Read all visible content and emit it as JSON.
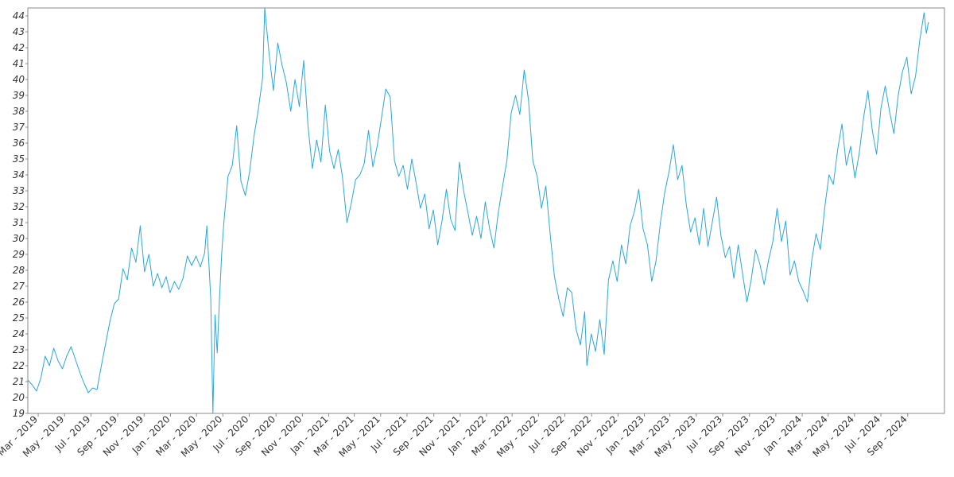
{
  "chart_data": {
    "type": "line",
    "title": "",
    "xlabel": "",
    "ylabel": "",
    "x_range": [
      "2019-02-05",
      "2024-11-25"
    ],
    "ylim": [
      19,
      44.5
    ],
    "y_ticks": [
      19,
      20,
      21,
      22,
      23,
      24,
      25,
      26,
      27,
      28,
      29,
      30,
      31,
      32,
      33,
      34,
      35,
      36,
      37,
      38,
      39,
      40,
      41,
      42,
      43,
      44
    ],
    "x_ticks": [
      {
        "date": "2019-03-01",
        "label": "Mar - 2019"
      },
      {
        "date": "2019-05-01",
        "label": "May - 2019"
      },
      {
        "date": "2019-07-01",
        "label": "Jul - 2019"
      },
      {
        "date": "2019-09-01",
        "label": "Sep - 2019"
      },
      {
        "date": "2019-11-01",
        "label": "Nov - 2019"
      },
      {
        "date": "2020-01-01",
        "label": "Jan - 2020"
      },
      {
        "date": "2020-03-01",
        "label": "Mar - 2020"
      },
      {
        "date": "2020-05-01",
        "label": "May - 2020"
      },
      {
        "date": "2020-07-01",
        "label": "Jul - 2020"
      },
      {
        "date": "2020-09-01",
        "label": "Sep - 2020"
      },
      {
        "date": "2020-11-01",
        "label": "Nov - 2020"
      },
      {
        "date": "2021-01-01",
        "label": "Jan - 2021"
      },
      {
        "date": "2021-03-01",
        "label": "Mar - 2021"
      },
      {
        "date": "2021-05-01",
        "label": "May - 2021"
      },
      {
        "date": "2021-07-01",
        "label": "Jul - 2021"
      },
      {
        "date": "2021-09-01",
        "label": "Sep - 2021"
      },
      {
        "date": "2021-11-01",
        "label": "Nov - 2021"
      },
      {
        "date": "2022-01-01",
        "label": "Jan - 2022"
      },
      {
        "date": "2022-03-01",
        "label": "Mar - 2022"
      },
      {
        "date": "2022-05-01",
        "label": "May - 2022"
      },
      {
        "date": "2022-07-01",
        "label": "Jul - 2022"
      },
      {
        "date": "2022-09-01",
        "label": "Sep - 2022"
      },
      {
        "date": "2022-11-01",
        "label": "Nov - 2022"
      },
      {
        "date": "2023-01-01",
        "label": "Jan - 2023"
      },
      {
        "date": "2023-03-01",
        "label": "Mar - 2023"
      },
      {
        "date": "2023-05-01",
        "label": "May - 2023"
      },
      {
        "date": "2023-07-01",
        "label": "Jul - 2023"
      },
      {
        "date": "2023-09-01",
        "label": "Sep - 2023"
      },
      {
        "date": "2023-11-01",
        "label": "Nov - 2023"
      },
      {
        "date": "2024-01-01",
        "label": "Jan - 2024"
      },
      {
        "date": "2024-03-01",
        "label": "Mar - 2024"
      },
      {
        "date": "2024-05-01",
        "label": "May - 2024"
      },
      {
        "date": "2024-07-01",
        "label": "Jul - 2024"
      },
      {
        "date": "2024-09-01",
        "label": "Sep - 2024"
      }
    ],
    "grid": false,
    "legend": "none",
    "series": [
      {
        "color": "#29a8dd",
        "points": [
          [
            "2019-02-05",
            21.1
          ],
          [
            "2019-02-15",
            20.8
          ],
          [
            "2019-02-25",
            20.4
          ],
          [
            "2019-03-07",
            21.2
          ],
          [
            "2019-03-17",
            22.6
          ],
          [
            "2019-03-27",
            22.0
          ],
          [
            "2019-04-06",
            23.1
          ],
          [
            "2019-04-16",
            22.3
          ],
          [
            "2019-04-26",
            21.8
          ],
          [
            "2019-05-06",
            22.6
          ],
          [
            "2019-05-16",
            23.2
          ],
          [
            "2019-05-26",
            22.4
          ],
          [
            "2019-06-05",
            21.6
          ],
          [
            "2019-06-15",
            20.9
          ],
          [
            "2019-06-25",
            20.3
          ],
          [
            "2019-07-05",
            20.6
          ],
          [
            "2019-07-15",
            20.5
          ],
          [
            "2019-07-25",
            22.0
          ],
          [
            "2019-08-04",
            23.4
          ],
          [
            "2019-08-14",
            24.8
          ],
          [
            "2019-08-24",
            25.9
          ],
          [
            "2019-09-03",
            26.2
          ],
          [
            "2019-09-13",
            28.1
          ],
          [
            "2019-09-23",
            27.4
          ],
          [
            "2019-10-03",
            29.4
          ],
          [
            "2019-10-13",
            28.5
          ],
          [
            "2019-10-23",
            30.8
          ],
          [
            "2019-11-02",
            27.9
          ],
          [
            "2019-11-12",
            29.0
          ],
          [
            "2019-11-22",
            27.0
          ],
          [
            "2019-12-02",
            27.8
          ],
          [
            "2019-12-12",
            26.9
          ],
          [
            "2019-12-22",
            27.6
          ],
          [
            "2019-12-31",
            26.6
          ],
          [
            "2020-01-10",
            27.3
          ],
          [
            "2020-01-20",
            26.8
          ],
          [
            "2020-01-30",
            27.5
          ],
          [
            "2020-02-09",
            28.9
          ],
          [
            "2020-02-19",
            28.3
          ],
          [
            "2020-02-29",
            28.9
          ],
          [
            "2020-03-10",
            28.2
          ],
          [
            "2020-03-20",
            29.1
          ],
          [
            "2020-03-25",
            30.8
          ],
          [
            "2020-03-30",
            28.3
          ],
          [
            "2020-04-03",
            26.2
          ],
          [
            "2020-04-08",
            19.0
          ],
          [
            "2020-04-13",
            25.2
          ],
          [
            "2020-04-18",
            22.8
          ],
          [
            "2020-04-23",
            26.0
          ],
          [
            "2020-04-28",
            28.9
          ],
          [
            "2020-05-03",
            30.9
          ],
          [
            "2020-05-13",
            33.9
          ],
          [
            "2020-05-23",
            34.6
          ],
          [
            "2020-06-02",
            37.1
          ],
          [
            "2020-06-12",
            33.6
          ],
          [
            "2020-06-22",
            32.7
          ],
          [
            "2020-07-02",
            34.2
          ],
          [
            "2020-07-12",
            36.4
          ],
          [
            "2020-07-22",
            38.1
          ],
          [
            "2020-08-01",
            40.1
          ],
          [
            "2020-08-06",
            44.5
          ],
          [
            "2020-08-16",
            41.6
          ],
          [
            "2020-08-26",
            39.3
          ],
          [
            "2020-09-05",
            42.3
          ],
          [
            "2020-09-15",
            40.9
          ],
          [
            "2020-09-25",
            39.8
          ],
          [
            "2020-10-05",
            38.0
          ],
          [
            "2020-10-15",
            40.0
          ],
          [
            "2020-10-25",
            38.3
          ],
          [
            "2020-11-04",
            41.2
          ],
          [
            "2020-11-14",
            37.1
          ],
          [
            "2020-11-24",
            34.4
          ],
          [
            "2020-12-04",
            36.2
          ],
          [
            "2020-12-14",
            34.8
          ],
          [
            "2020-12-24",
            38.4
          ],
          [
            "2021-01-03",
            35.5
          ],
          [
            "2021-01-13",
            34.4
          ],
          [
            "2021-01-23",
            35.6
          ],
          [
            "2021-02-02",
            33.8
          ],
          [
            "2021-02-12",
            31.0
          ],
          [
            "2021-02-22",
            32.2
          ],
          [
            "2021-03-04",
            33.7
          ],
          [
            "2021-03-14",
            34.0
          ],
          [
            "2021-03-24",
            34.7
          ],
          [
            "2021-04-03",
            36.8
          ],
          [
            "2021-04-13",
            34.5
          ],
          [
            "2021-04-23",
            35.8
          ],
          [
            "2021-05-03",
            37.6
          ],
          [
            "2021-05-13",
            39.4
          ],
          [
            "2021-05-23",
            38.9
          ],
          [
            "2021-06-02",
            34.9
          ],
          [
            "2021-06-12",
            33.9
          ],
          [
            "2021-06-22",
            34.6
          ],
          [
            "2021-07-02",
            33.1
          ],
          [
            "2021-07-12",
            35.0
          ],
          [
            "2021-07-22",
            33.5
          ],
          [
            "2021-08-01",
            31.9
          ],
          [
            "2021-08-11",
            32.8
          ],
          [
            "2021-08-21",
            30.6
          ],
          [
            "2021-08-31",
            31.8
          ],
          [
            "2021-09-10",
            29.6
          ],
          [
            "2021-09-20",
            31.1
          ],
          [
            "2021-09-30",
            33.1
          ],
          [
            "2021-10-10",
            31.2
          ],
          [
            "2021-10-20",
            30.5
          ],
          [
            "2021-10-30",
            34.8
          ],
          [
            "2021-11-09",
            33.0
          ],
          [
            "2021-11-19",
            31.6
          ],
          [
            "2021-11-29",
            30.2
          ],
          [
            "2021-12-09",
            31.4
          ],
          [
            "2021-12-19",
            30.0
          ],
          [
            "2021-12-29",
            32.3
          ],
          [
            "2022-01-08",
            30.6
          ],
          [
            "2022-01-18",
            29.4
          ],
          [
            "2022-01-28",
            31.6
          ],
          [
            "2022-02-07",
            33.3
          ],
          [
            "2022-02-17",
            34.9
          ],
          [
            "2022-02-27",
            37.9
          ],
          [
            "2022-03-09",
            39.0
          ],
          [
            "2022-03-19",
            37.8
          ],
          [
            "2022-03-29",
            40.6
          ],
          [
            "2022-04-08",
            38.7
          ],
          [
            "2022-04-18",
            34.9
          ],
          [
            "2022-04-28",
            33.9
          ],
          [
            "2022-05-08",
            31.9
          ],
          [
            "2022-05-18",
            33.3
          ],
          [
            "2022-05-28",
            30.3
          ],
          [
            "2022-06-07",
            27.6
          ],
          [
            "2022-06-17",
            26.2
          ],
          [
            "2022-06-27",
            25.1
          ],
          [
            "2022-07-07",
            26.9
          ],
          [
            "2022-07-17",
            26.6
          ],
          [
            "2022-07-27",
            24.3
          ],
          [
            "2022-08-06",
            23.3
          ],
          [
            "2022-08-16",
            25.4
          ],
          [
            "2022-08-21",
            22.0
          ],
          [
            "2022-08-31",
            24.0
          ],
          [
            "2022-09-10",
            22.9
          ],
          [
            "2022-09-20",
            24.9
          ],
          [
            "2022-09-30",
            22.7
          ],
          [
            "2022-10-10",
            27.4
          ],
          [
            "2022-10-20",
            28.6
          ],
          [
            "2022-10-30",
            27.3
          ],
          [
            "2022-11-09",
            29.6
          ],
          [
            "2022-11-19",
            28.4
          ],
          [
            "2022-11-29",
            30.8
          ],
          [
            "2022-12-09",
            31.7
          ],
          [
            "2022-12-19",
            33.1
          ],
          [
            "2022-12-29",
            30.6
          ],
          [
            "2023-01-08",
            29.6
          ],
          [
            "2023-01-18",
            27.3
          ],
          [
            "2023-01-28",
            28.6
          ],
          [
            "2023-02-07",
            31.0
          ],
          [
            "2023-02-17",
            32.9
          ],
          [
            "2023-02-27",
            34.2
          ],
          [
            "2023-03-09",
            35.9
          ],
          [
            "2023-03-19",
            33.7
          ],
          [
            "2023-03-29",
            34.6
          ],
          [
            "2023-04-08",
            32.1
          ],
          [
            "2023-04-18",
            30.4
          ],
          [
            "2023-04-28",
            31.3
          ],
          [
            "2023-05-08",
            29.6
          ],
          [
            "2023-05-18",
            31.9
          ],
          [
            "2023-05-28",
            29.5
          ],
          [
            "2023-06-07",
            31.0
          ],
          [
            "2023-06-17",
            32.6
          ],
          [
            "2023-06-27",
            30.2
          ],
          [
            "2023-07-07",
            28.8
          ],
          [
            "2023-07-17",
            29.5
          ],
          [
            "2023-07-27",
            27.5
          ],
          [
            "2023-08-06",
            29.6
          ],
          [
            "2023-08-16",
            27.8
          ],
          [
            "2023-08-26",
            26.0
          ],
          [
            "2023-09-05",
            27.4
          ],
          [
            "2023-09-15",
            29.3
          ],
          [
            "2023-09-25",
            28.4
          ],
          [
            "2023-10-05",
            27.1
          ],
          [
            "2023-10-15",
            28.6
          ],
          [
            "2023-10-25",
            29.8
          ],
          [
            "2023-11-04",
            31.9
          ],
          [
            "2023-11-14",
            29.8
          ],
          [
            "2023-11-24",
            31.1
          ],
          [
            "2023-12-04",
            27.7
          ],
          [
            "2023-12-14",
            28.6
          ],
          [
            "2023-12-24",
            27.3
          ],
          [
            "2024-01-03",
            26.7
          ],
          [
            "2024-01-13",
            26.0
          ],
          [
            "2024-01-23",
            28.6
          ],
          [
            "2024-02-02",
            30.3
          ],
          [
            "2024-02-12",
            29.3
          ],
          [
            "2024-02-22",
            31.9
          ],
          [
            "2024-03-03",
            34.0
          ],
          [
            "2024-03-13",
            33.4
          ],
          [
            "2024-03-23",
            35.6
          ],
          [
            "2024-04-02",
            37.2
          ],
          [
            "2024-04-12",
            34.6
          ],
          [
            "2024-04-22",
            35.8
          ],
          [
            "2024-05-02",
            33.8
          ],
          [
            "2024-05-12",
            35.4
          ],
          [
            "2024-05-22",
            37.6
          ],
          [
            "2024-06-01",
            39.3
          ],
          [
            "2024-06-11",
            36.8
          ],
          [
            "2024-06-21",
            35.3
          ],
          [
            "2024-07-01",
            38.2
          ],
          [
            "2024-07-11",
            39.6
          ],
          [
            "2024-07-21",
            38.0
          ],
          [
            "2024-07-31",
            36.6
          ],
          [
            "2024-08-10",
            39.0
          ],
          [
            "2024-08-20",
            40.5
          ],
          [
            "2024-08-30",
            41.4
          ],
          [
            "2024-09-09",
            39.1
          ],
          [
            "2024-09-19",
            40.2
          ],
          [
            "2024-09-29",
            42.5
          ],
          [
            "2024-10-09",
            44.2
          ],
          [
            "2024-10-14",
            42.9
          ],
          [
            "2024-10-19",
            43.6
          ]
        ]
      }
    ]
  }
}
